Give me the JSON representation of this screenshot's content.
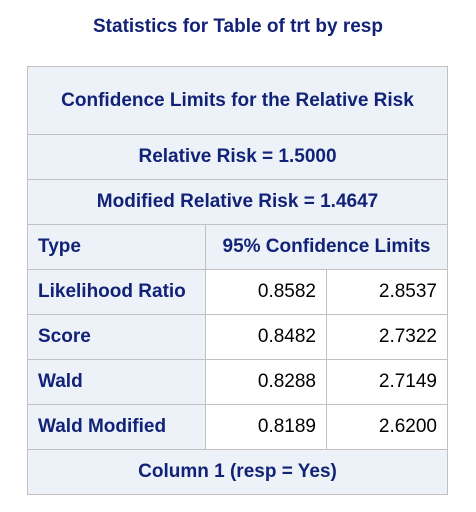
{
  "page": {
    "title": "Statistics for Table of trt by resp"
  },
  "table": {
    "caption": "Confidence Limits for the Relative Risk",
    "relative_risk": "Relative Risk = 1.5000",
    "modified_relative_risk": "Modified Relative Risk = 1.4647",
    "columns": {
      "type": "Type",
      "limits": "95% Confidence Limits"
    },
    "rows": [
      {
        "type": "Likelihood Ratio",
        "lower": "0.8582",
        "upper": "2.8537"
      },
      {
        "type": "Score",
        "lower": "0.8482",
        "upper": "2.7322"
      },
      {
        "type": "Wald",
        "lower": "0.8288",
        "upper": "2.7149"
      },
      {
        "type": "Wald Modified",
        "lower": "0.8189",
        "upper": "2.6200"
      }
    ],
    "footer": "Column 1 (resp = Yes)"
  },
  "colors": {
    "header_bg": "#edf2f9",
    "header_text": "#112277",
    "border": "#c1c1c1"
  }
}
